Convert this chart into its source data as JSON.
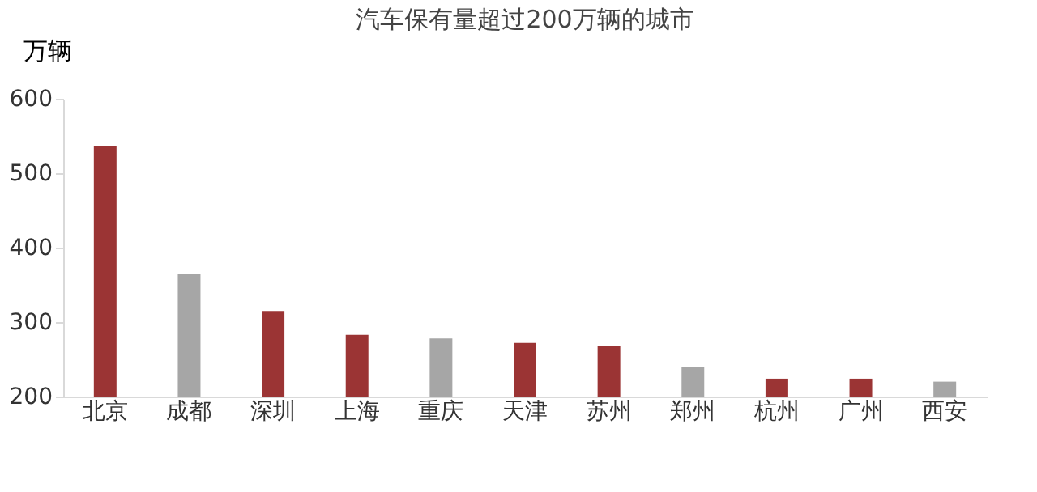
{
  "chart_data": {
    "type": "bar",
    "title": "汽车保有量超过200万辆的城市",
    "ylabel": "万辆",
    "categories": [
      "北京",
      "成都",
      "深圳",
      "上海",
      "重庆",
      "天津",
      "苏州",
      "郑州",
      "杭州",
      "广州",
      "西安"
    ],
    "values": [
      537,
      365,
      315,
      283,
      278,
      272,
      268,
      239,
      224,
      224,
      220
    ],
    "colors": [
      "#9b3434",
      "#a6a6a6",
      "#9b3434",
      "#9b3434",
      "#a6a6a6",
      "#9b3434",
      "#9b3434",
      "#a6a6a6",
      "#9b3434",
      "#9b3434",
      "#a6a6a6"
    ],
    "ylim": [
      200,
      600
    ],
    "yticks": [
      200,
      300,
      400,
      500,
      600
    ],
    "grid": false
  }
}
